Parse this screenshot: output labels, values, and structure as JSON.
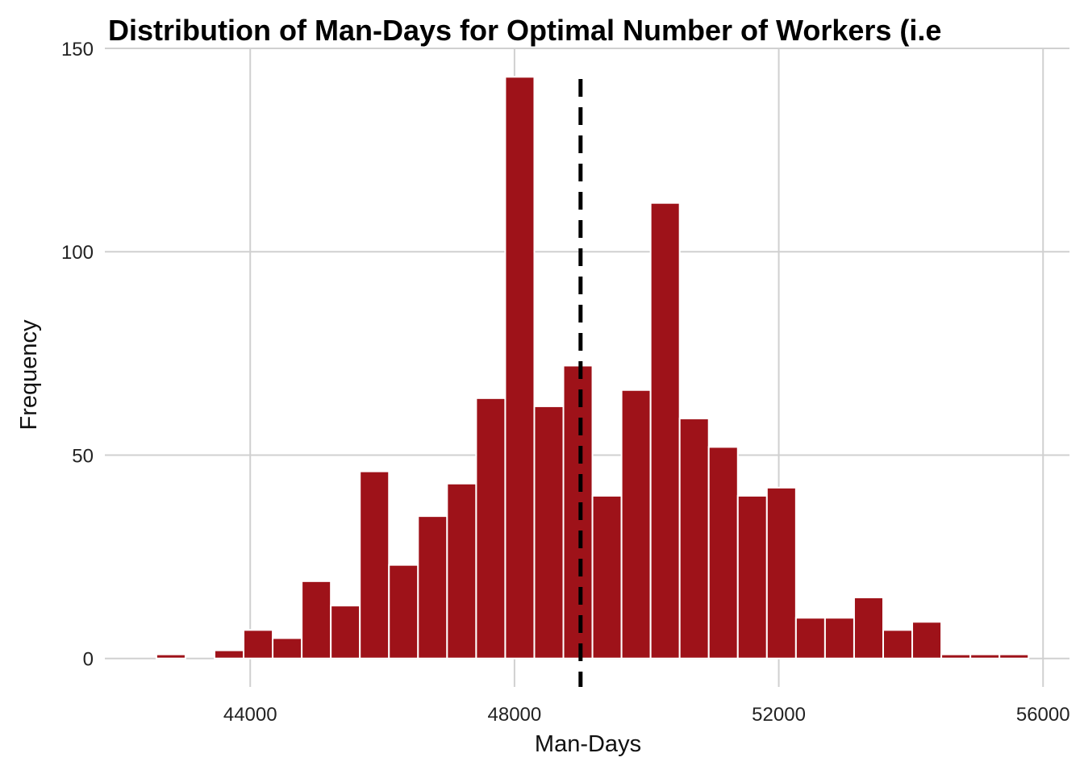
{
  "chart_data": {
    "type": "bar",
    "title": "Distribution of Man-Days for Optimal Number of Workers (i.e",
    "xlabel": "Man-Days",
    "ylabel": "Frequency",
    "xlim": [
      41800,
      56400
    ],
    "ylim": [
      -7,
      150
    ],
    "x_ticks": [
      44000,
      48000,
      52000,
      56000
    ],
    "x_tick_labels": [
      "44000",
      "48000",
      "52000",
      "56000"
    ],
    "y_ticks": [
      0,
      50,
      100,
      150
    ],
    "y_tick_labels": [
      "0",
      "50",
      "100",
      "150"
    ],
    "grid": true,
    "bar_color": "#9E1219",
    "bin_start": 42580,
    "bin_width": 440,
    "values": [
      1,
      0,
      2,
      7,
      5,
      19,
      13,
      46,
      23,
      35,
      43,
      64,
      143,
      62,
      72,
      40,
      66,
      112,
      59,
      52,
      40,
      42,
      10,
      10,
      15,
      7,
      9,
      1,
      1,
      1
    ],
    "mean_line": {
      "x": 49000,
      "style": "dashed",
      "color": "#000000"
    }
  }
}
